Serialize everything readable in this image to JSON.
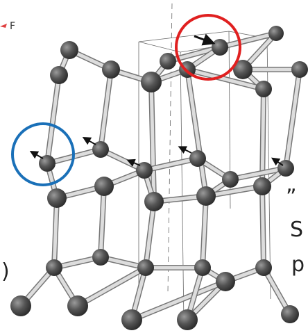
{
  "labels": {
    "f": "F",
    "quote": "„",
    "s": "S",
    "p": "p",
    "paren": ")"
  }
}
